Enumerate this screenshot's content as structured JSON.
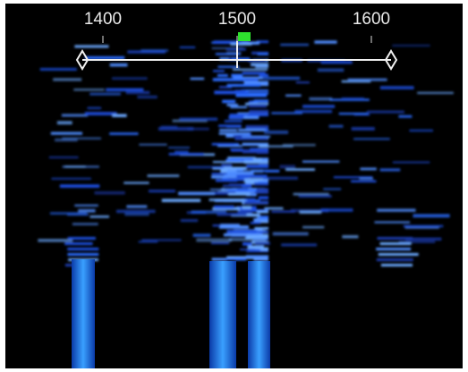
{
  "scale": {
    "ticks": [
      1400,
      1500,
      1600
    ]
  }
}
